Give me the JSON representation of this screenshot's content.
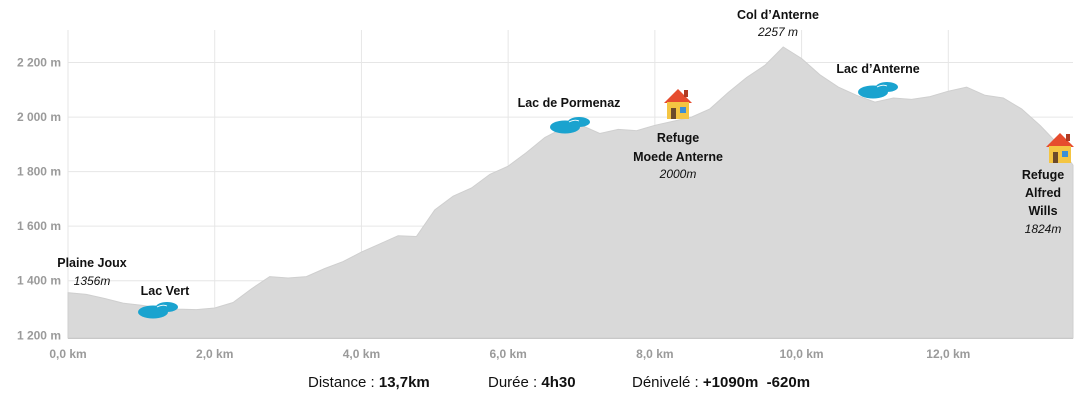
{
  "chart_data": {
    "type": "area",
    "xlabel": "",
    "ylabel": "",
    "xlim": [
      0,
      13.7
    ],
    "ylim": [
      1190,
      2290
    ],
    "x_ticks": [
      0,
      2,
      4,
      6,
      8,
      10,
      12
    ],
    "x_tick_labels": [
      "0,0 km",
      "2,0 km",
      "4,0 km",
      "6,0 km",
      "8,0 km",
      "10,0 km",
      "12,0 km"
    ],
    "y_ticks": [
      1200,
      1400,
      1600,
      1800,
      2000,
      2200
    ],
    "y_tick_labels": [
      "1 200 m",
      "1 400 m",
      "1 600 m",
      "1 800 m",
      "2 000 m",
      "2 200 m"
    ],
    "grid": true,
    "fill_color": "#d9d9d9",
    "lake_color": "#1aa3cf",
    "series": [
      {
        "x": [
          0,
          0.25,
          0.5,
          0.75,
          1.0,
          1.25,
          1.5,
          1.75,
          2.0,
          2.25,
          2.5,
          2.75,
          3.0,
          3.25,
          3.5,
          3.75,
          4.0,
          4.25,
          4.5,
          4.75,
          5.0,
          5.25,
          5.5,
          5.75,
          6.0,
          6.25,
          6.5,
          6.75,
          7.0,
          7.25,
          7.5,
          7.75,
          8.0,
          8.25,
          8.5,
          8.75,
          9.0,
          9.25,
          9.5,
          9.75,
          10.0,
          10.25,
          10.5,
          10.75,
          11.0,
          11.25,
          11.5,
          11.75,
          12.0,
          12.25,
          12.5,
          12.75,
          13.0,
          13.25,
          13.5,
          13.7
        ],
        "y": [
          1356,
          1350,
          1335,
          1318,
          1310,
          1300,
          1296,
          1294,
          1300,
          1320,
          1370,
          1415,
          1410,
          1415,
          1445,
          1470,
          1505,
          1535,
          1565,
          1562,
          1660,
          1710,
          1740,
          1790,
          1820,
          1870,
          1925,
          1960,
          1970,
          1940,
          1955,
          1950,
          1970,
          1985,
          2000,
          2030,
          2090,
          2145,
          2190,
          2257,
          2215,
          2155,
          2110,
          2080,
          2055,
          2070,
          2065,
          2075,
          2095,
          2110,
          2080,
          2070,
          2030,
          1970,
          1900,
          1824
        ]
      }
    ],
    "waypoints": [
      {
        "name": "Plaine Joux",
        "altitude": "1356m",
        "distance": 0.0,
        "elevation": 1356
      },
      {
        "name": "Lac Vert",
        "altitude": "",
        "distance": 1.2,
        "elevation": 1300,
        "icon": "lake-icon"
      },
      {
        "name": "Lac de Pormenaz",
        "altitude": "",
        "distance": 6.85,
        "elevation": 1950,
        "icon": "lake-icon"
      },
      {
        "name": "Refuge Moede Anterne",
        "altitude": "2000m",
        "distance": 8.4,
        "elevation": 2000,
        "icon": "house-icon"
      },
      {
        "name": "Col d’Anterne",
        "altitude": "2257 m",
        "distance": 9.75,
        "elevation": 2257
      },
      {
        "name": "Lac d’Anterne",
        "altitude": "",
        "distance": 11.1,
        "elevation": 2070,
        "icon": "lake-icon"
      },
      {
        "name": "Refuge Alfred Wills",
        "altitude": "1824m",
        "distance": 13.7,
        "elevation": 1824,
        "icon": "house-icon"
      }
    ]
  },
  "waypoint_labels": {
    "plaine_joux": {
      "line1": "Plaine Joux",
      "alt": "1356m"
    },
    "lac_vert": {
      "line1": "Lac Vert"
    },
    "lac_pormenaz": {
      "line1": "Lac de Pormenaz"
    },
    "refuge_moede": {
      "line1": "Refuge",
      "line2": "Moede Anterne",
      "alt": "2000m"
    },
    "col_anterne": {
      "line1": "Col d’Anterne",
      "alt": "2257 m"
    },
    "lac_anterne": {
      "line1": "Lac d’Anterne"
    },
    "refuge_wills": {
      "line1": "Refuge",
      "line2": "Alfred",
      "line3": "Wills",
      "alt": "1824m"
    }
  },
  "stats": {
    "distance_label": "Distance : ",
    "distance_value": "13,7km",
    "duration_label": "Durée : ",
    "duration_value": "4h30",
    "elevation_label": "Dénivelé : ",
    "elevation_value": "+1090m  -620m"
  }
}
